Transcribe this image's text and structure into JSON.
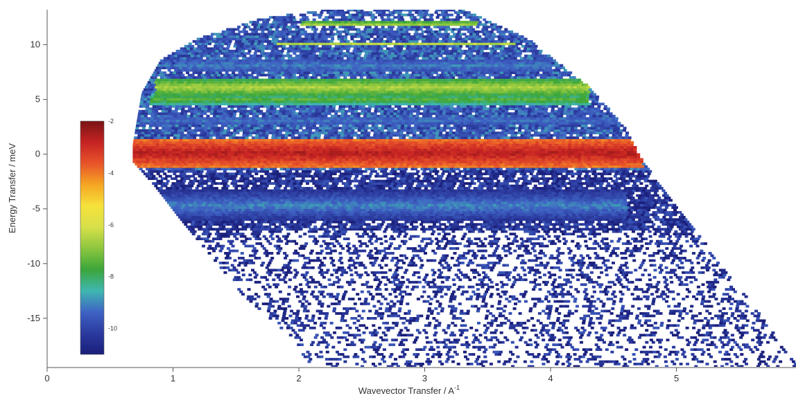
{
  "chart_data": {
    "type": "heatmap",
    "title": "",
    "xlabel": "Wavevector Transfer / A",
    "xlabel_superscript": "-1",
    "ylabel": "Energy Transfer / meV",
    "xlim": [
      0,
      5.95
    ],
    "ylim": [
      -19.5,
      13.2
    ],
    "x_ticks": [
      0,
      1,
      2,
      3,
      4,
      5
    ],
    "y_ticks": [
      10,
      5,
      0,
      -5,
      -10,
      -15
    ],
    "grid": false,
    "colorbar": {
      "range": [
        -11,
        -2
      ],
      "ticks": [
        -2,
        -4,
        -6,
        -8,
        -10
      ],
      "placement": "left-inside",
      "colors": [
        "#1a1f7a",
        "#2b3a9e",
        "#3f63c4",
        "#3fb7b0",
        "#3ca63a",
        "#8cc63f",
        "#d7e04a",
        "#f6e23c",
        "#f5a623",
        "#e8542a",
        "#c62323",
        "#7a1414"
      ]
    },
    "coverage_boundary": {
      "left": [
        [
          0.68,
          0.8
        ],
        [
          0.75,
          5.5
        ],
        [
          0.9,
          8.5
        ],
        [
          1.2,
          10.5
        ],
        [
          1.7,
          12.3
        ],
        [
          2.2,
          13.1
        ]
      ],
      "right": [
        [
          3.3,
          13.1
        ],
        [
          3.8,
          10.5
        ],
        [
          4.3,
          6.0
        ],
        [
          4.6,
          2.0
        ],
        [
          4.72,
          -0.8
        ],
        [
          5.2,
          -8.0
        ],
        [
          5.6,
          -14.0
        ],
        [
          5.95,
          -19.5
        ]
      ],
      "bottom_left": [
        [
          0.68,
          -0.8
        ],
        [
          0.85,
          -3.0
        ],
        [
          1.05,
          -6.0
        ],
        [
          1.3,
          -9.5
        ],
        [
          1.55,
          -13.0
        ],
        [
          1.85,
          -16.0
        ],
        [
          2.1,
          -19.5
        ]
      ]
    },
    "bands": [
      {
        "energy": 0.0,
        "width": 1.4,
        "log_intensity": -2.6,
        "q_range": [
          0.68,
          4.72
        ]
      },
      {
        "energy": 6.0,
        "width": 0.8,
        "log_intensity": -6.5,
        "q_range": [
          0.85,
          4.3
        ]
      },
      {
        "energy": 4.9,
        "width": 0.6,
        "log_intensity": -7.4,
        "q_range": [
          0.8,
          4.3
        ]
      },
      {
        "energy": 10.0,
        "width": 0.2,
        "log_intensity": -6.3,
        "q_range": [
          1.8,
          3.7
        ]
      },
      {
        "energy": 11.8,
        "width": 0.2,
        "log_intensity": -6.3,
        "q_range": [
          2.0,
          3.4
        ]
      },
      {
        "energy": -4.8,
        "width": 1.5,
        "log_intensity": -9.0,
        "q_range": [
          0.8,
          4.6
        ]
      },
      {
        "energy": 3.0,
        "width": 1.2,
        "log_intensity": -9.2,
        "q_range": [
          0.75,
          4.55
        ]
      },
      {
        "energy": 8.0,
        "width": 1.4,
        "log_intensity": -9.1,
        "q_range": [
          1.0,
          4.0
        ]
      }
    ],
    "background_log_intensity": {
      "upper": -9.6,
      "lower": -10.4
    }
  }
}
